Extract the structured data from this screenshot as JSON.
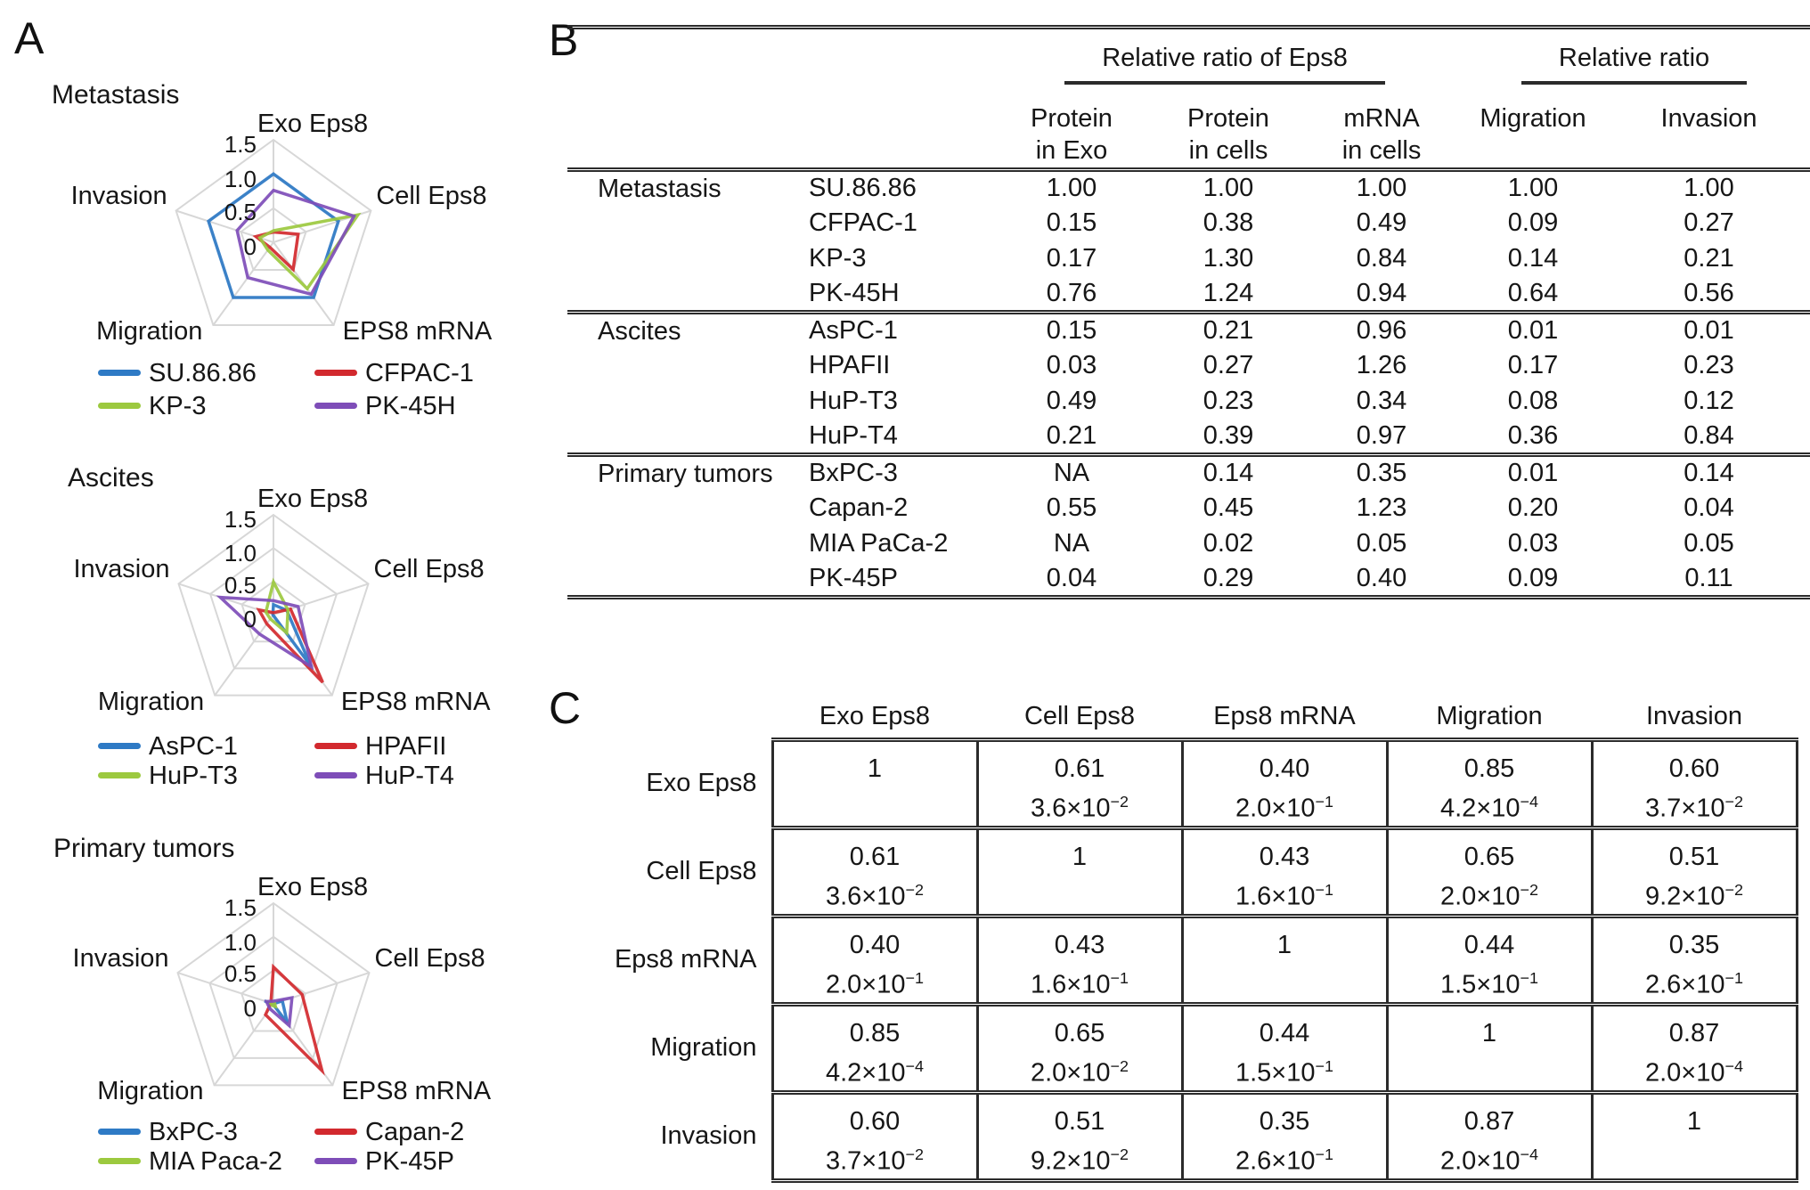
{
  "colors": {
    "series_blue": "#2e7ac5",
    "series_red": "#d2292e",
    "series_green": "#9cc93f",
    "series_purple": "#7e4db8",
    "grid": "#d7d7d7",
    "rule": "#2b2b2b",
    "text": "#161616",
    "background": "#ffffff"
  },
  "panel_a": {
    "label": "A"
  },
  "panel_b": {
    "label": "B",
    "group_headers": [
      "Relative ratio of Eps8",
      "Relative ratio"
    ],
    "sub_headers": [
      {
        "line1": "Protein",
        "line2": "in Exo"
      },
      {
        "line1": "Protein",
        "line2": "in cells"
      },
      {
        "line1": "mRNA",
        "line2": "in cells"
      },
      {
        "line1": "Migration",
        "line2": ""
      },
      {
        "line1": "Invasion",
        "line2": ""
      }
    ],
    "groups": [
      {
        "name": "Metastasis",
        "rows": [
          {
            "cell_line": "SU.86.86",
            "values": [
              "1.00",
              "1.00",
              "1.00",
              "1.00",
              "1.00"
            ]
          },
          {
            "cell_line": "CFPAC-1",
            "values": [
              "0.15",
              "0.38",
              "0.49",
              "0.09",
              "0.27"
            ]
          },
          {
            "cell_line": "KP-3",
            "values": [
              "0.17",
              "1.30",
              "0.84",
              "0.14",
              "0.21"
            ]
          },
          {
            "cell_line": "PK-45H",
            "values": [
              "0.76",
              "1.24",
              "0.94",
              "0.64",
              "0.56"
            ]
          }
        ]
      },
      {
        "name": "Ascites",
        "rows": [
          {
            "cell_line": "AsPC-1",
            "values": [
              "0.15",
              "0.21",
              "0.96",
              "0.01",
              "0.01"
            ]
          },
          {
            "cell_line": "HPAFII",
            "values": [
              "0.03",
              "0.27",
              "1.26",
              "0.17",
              "0.23"
            ]
          },
          {
            "cell_line": "HuP-T3",
            "values": [
              "0.49",
              "0.23",
              "0.34",
              "0.08",
              "0.12"
            ]
          },
          {
            "cell_line": "HuP-T4",
            "values": [
              "0.21",
              "0.39",
              "0.97",
              "0.36",
              "0.84"
            ]
          }
        ]
      },
      {
        "name": "Primary tumors",
        "rows": [
          {
            "cell_line": "BxPC-3",
            "values": [
              "NA",
              "0.14",
              "0.35",
              "0.01",
              "0.14"
            ]
          },
          {
            "cell_line": "Capan-2",
            "values": [
              "0.55",
              "0.45",
              "1.23",
              "0.20",
              "0.04"
            ]
          },
          {
            "cell_line": "MIA PaCa-2",
            "values": [
              "NA",
              "0.02",
              "0.05",
              "0.03",
              "0.05"
            ]
          },
          {
            "cell_line": "PK-45P",
            "values": [
              "0.04",
              "0.29",
              "0.40",
              "0.09",
              "0.11"
            ]
          }
        ]
      }
    ]
  },
  "panel_c": {
    "label": "C",
    "columns": [
      "Exo Eps8",
      "Cell Eps8",
      "Eps8 mRNA",
      "Migration",
      "Invasion"
    ],
    "rows": [
      {
        "name": "Exo Eps8",
        "cells": [
          {
            "v": "1"
          },
          {
            "v": "0.61",
            "p": "3.6×10",
            "e": "−2"
          },
          {
            "v": "0.40",
            "p": "2.0×10",
            "e": "−1"
          },
          {
            "v": "0.85",
            "p": "4.2×10",
            "e": "−4"
          },
          {
            "v": "0.60",
            "p": "3.7×10",
            "e": "−2"
          }
        ]
      },
      {
        "name": "Cell Eps8",
        "cells": [
          {
            "v": "0.61",
            "p": "3.6×10",
            "e": "−2"
          },
          {
            "v": "1"
          },
          {
            "v": "0.43",
            "p": "1.6×10",
            "e": "−1"
          },
          {
            "v": "0.65",
            "p": "2.0×10",
            "e": "−2"
          },
          {
            "v": "0.51",
            "p": "9.2×10",
            "e": "−2"
          }
        ]
      },
      {
        "name": "Eps8 mRNA",
        "cells": [
          {
            "v": "0.40",
            "p": "2.0×10",
            "e": "−1"
          },
          {
            "v": "0.43",
            "p": "1.6×10",
            "e": "−1"
          },
          {
            "v": "1"
          },
          {
            "v": "0.44",
            "p": "1.5×10",
            "e": "−1"
          },
          {
            "v": "0.35",
            "p": "2.6×10",
            "e": "−1"
          }
        ]
      },
      {
        "name": "Migration",
        "cells": [
          {
            "v": "0.85",
            "p": "4.2×10",
            "e": "−4"
          },
          {
            "v": "0.65",
            "p": "2.0×10",
            "e": "−2"
          },
          {
            "v": "0.44",
            "p": "1.5×10",
            "e": "−1"
          },
          {
            "v": "1"
          },
          {
            "v": "0.87",
            "p": "2.0×10",
            "e": "−4"
          }
        ]
      },
      {
        "name": "Invasion",
        "cells": [
          {
            "v": "0.60",
            "p": "3.7×10",
            "e": "−2"
          },
          {
            "v": "0.51",
            "p": "9.2×10",
            "e": "−2"
          },
          {
            "v": "0.35",
            "p": "2.6×10",
            "e": "−1"
          },
          {
            "v": "0.87",
            "p": "2.0×10",
            "e": "−4"
          },
          {
            "v": "1"
          }
        ]
      }
    ]
  },
  "chart_data": [
    {
      "type": "radar",
      "title": "Metastasis",
      "axes": [
        "Exo Eps8",
        "Cell Eps8",
        "EPS8 mRNA",
        "Migration",
        "Invasion"
      ],
      "rmax": 1.5,
      "rings": [
        0.5,
        1.0,
        1.5
      ],
      "tick_labels": [
        "1.5",
        "1.0",
        "0.5",
        "0"
      ],
      "legend_position": "bottom",
      "series": [
        {
          "name": "SU.86.86",
          "color": "#2e7ac5",
          "values": [
            1.0,
            1.0,
            1.0,
            1.0,
            1.0
          ]
        },
        {
          "name": "CFPAC-1",
          "color": "#d2292e",
          "values": [
            0.15,
            0.38,
            0.49,
            0.09,
            0.27
          ]
        },
        {
          "name": "KP-3",
          "color": "#9cc93f",
          "values": [
            0.17,
            1.3,
            0.84,
            0.14,
            0.21
          ]
        },
        {
          "name": "PK-45H",
          "color": "#7e4db8",
          "values": [
            0.76,
            1.24,
            0.94,
            0.64,
            0.56
          ]
        }
      ]
    },
    {
      "type": "radar",
      "title": "Ascites",
      "axes": [
        "Exo Eps8",
        "Cell Eps8",
        "EPS8 mRNA",
        "Migration",
        "Invasion"
      ],
      "rmax": 1.5,
      "rings": [
        0.5,
        1.0,
        1.5
      ],
      "tick_labels": [
        "1.5",
        "1.0",
        "0.5",
        "0"
      ],
      "legend_position": "bottom",
      "series": [
        {
          "name": "AsPC-1",
          "color": "#2e7ac5",
          "values": [
            0.15,
            0.21,
            0.96,
            0.01,
            0.01
          ]
        },
        {
          "name": "HPAFII",
          "color": "#d2292e",
          "values": [
            0.03,
            0.27,
            1.26,
            0.17,
            0.23
          ]
        },
        {
          "name": "HuP-T3",
          "color": "#9cc93f",
          "values": [
            0.49,
            0.23,
            0.34,
            0.08,
            0.12
          ]
        },
        {
          "name": "HuP-T4",
          "color": "#7e4db8",
          "values": [
            0.21,
            0.39,
            0.97,
            0.36,
            0.84
          ]
        }
      ]
    },
    {
      "type": "radar",
      "title": "Primary tumors",
      "axes": [
        "Exo Eps8",
        "Cell Eps8",
        "EPS8 mRNA",
        "Migration",
        "Invasion"
      ],
      "rmax": 1.5,
      "rings": [
        0.5,
        1.0,
        1.5
      ],
      "tick_labels": [
        "1.5",
        "1.0",
        "0.5",
        "0"
      ],
      "legend_position": "bottom",
      "series": [
        {
          "name": "BxPC-3",
          "color": "#2e7ac5",
          "values": [
            null,
            0.14,
            0.35,
            0.01,
            0.14
          ]
        },
        {
          "name": "Capan-2",
          "color": "#d2292e",
          "values": [
            0.55,
            0.45,
            1.23,
            0.2,
            0.04
          ]
        },
        {
          "name": "MIA Paca-2",
          "color": "#9cc93f",
          "values": [
            null,
            0.02,
            0.05,
            0.03,
            0.05
          ]
        },
        {
          "name": "PK-45P",
          "color": "#7e4db8",
          "values": [
            0.04,
            0.29,
            0.4,
            0.09,
            0.11
          ]
        }
      ]
    },
    {
      "type": "table",
      "panel": "B",
      "column_groups": [
        "Relative ratio of Eps8",
        "Relative ratio"
      ],
      "columns": [
        "Protein in Exo",
        "Protein in cells",
        "mRNA in cells",
        "Migration",
        "Invasion"
      ],
      "rows": [
        [
          "Metastasis",
          "SU.86.86",
          "1.00",
          "1.00",
          "1.00",
          "1.00",
          "1.00"
        ],
        [
          "",
          "CFPAC-1",
          "0.15",
          "0.38",
          "0.49",
          "0.09",
          "0.27"
        ],
        [
          "",
          "KP-3",
          "0.17",
          "1.30",
          "0.84",
          "0.14",
          "0.21"
        ],
        [
          "",
          "PK-45H",
          "0.76",
          "1.24",
          "0.94",
          "0.64",
          "0.56"
        ],
        [
          "Ascites",
          "AsPC-1",
          "0.15",
          "0.21",
          "0.96",
          "0.01",
          "0.01"
        ],
        [
          "",
          "HPAFII",
          "0.03",
          "0.27",
          "1.26",
          "0.17",
          "0.23"
        ],
        [
          "",
          "HuP-T3",
          "0.49",
          "0.23",
          "0.34",
          "0.08",
          "0.12"
        ],
        [
          "",
          "HuP-T4",
          "0.21",
          "0.39",
          "0.97",
          "0.36",
          "0.84"
        ],
        [
          "Primary tumors",
          "BxPC-3",
          "NA",
          "0.14",
          "0.35",
          "0.01",
          "0.14"
        ],
        [
          "",
          "Capan-2",
          "0.55",
          "0.45",
          "1.23",
          "0.20",
          "0.04"
        ],
        [
          "",
          "MIA PaCa-2",
          "NA",
          "0.02",
          "0.05",
          "0.03",
          "0.05"
        ],
        [
          "",
          "PK-45P",
          "0.04",
          "0.29",
          "0.40",
          "0.09",
          "0.11"
        ]
      ]
    },
    {
      "type": "table",
      "panel": "C",
      "columns": [
        "Exo Eps8",
        "Cell Eps8",
        "Eps8 mRNA",
        "Migration",
        "Invasion"
      ],
      "rows": [
        {
          "name": "Exo Eps8",
          "r": [
            "1",
            "0.61",
            "0.40",
            "0.85",
            "0.60"
          ],
          "p": [
            null,
            "3.6×10−2",
            "2.0×10−1",
            "4.2×10−4",
            "3.7×10−2"
          ]
        },
        {
          "name": "Cell Eps8",
          "r": [
            "0.61",
            "1",
            "0.43",
            "0.65",
            "0.51"
          ],
          "p": [
            "3.6×10−2",
            null,
            "1.6×10−1",
            "2.0×10−2",
            "9.2×10−2"
          ]
        },
        {
          "name": "Eps8 mRNA",
          "r": [
            "0.40",
            "0.43",
            "1",
            "0.44",
            "0.35"
          ],
          "p": [
            "2.0×10−1",
            "1.6×10−1",
            null,
            "1.5×10−1",
            "2.6×10−1"
          ]
        },
        {
          "name": "Migration",
          "r": [
            "0.85",
            "0.65",
            "0.44",
            "1",
            "0.87"
          ],
          "p": [
            "4.2×10−4",
            "2.0×10−2",
            "1.5×10−1",
            null,
            "2.0×10−4"
          ]
        },
        {
          "name": "Invasion",
          "r": [
            "0.60",
            "0.51",
            "0.35",
            "0.87",
            "1"
          ],
          "p": [
            "3.7×10−2",
            "9.2×10−2",
            "2.6×10−1",
            "2.0×10−4",
            null
          ]
        }
      ]
    }
  ]
}
